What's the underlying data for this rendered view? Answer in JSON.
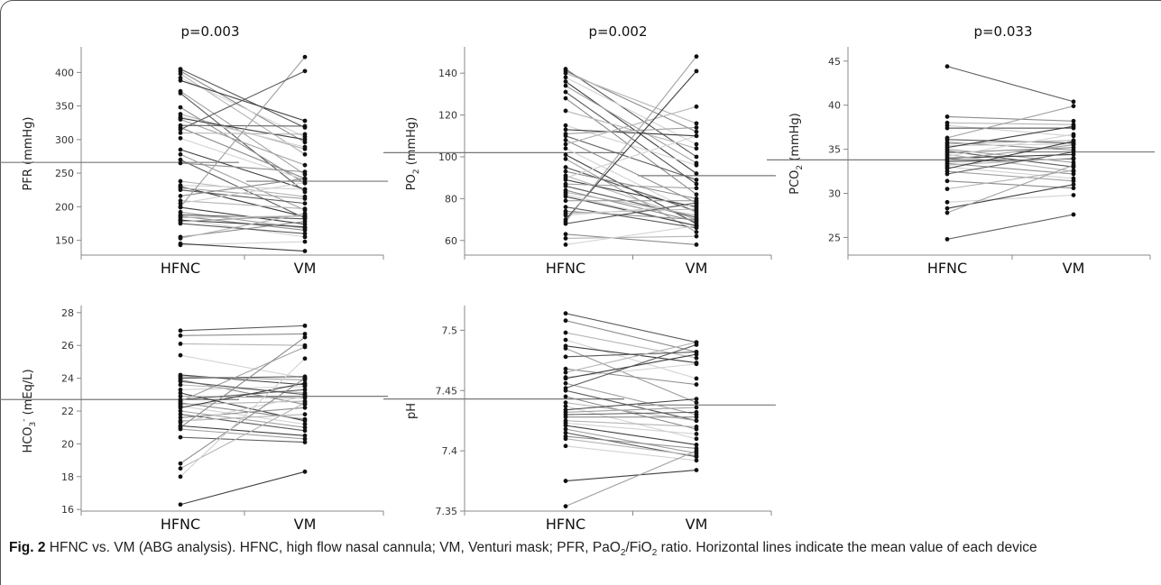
{
  "figure": {
    "caption_label": "Fig. 2",
    "caption_text": "HFNC vs. VM (ABG analysis). HFNC, high flow nasal cannula; VM, Venturi mask; PFR, PaO2/FiO2 ratio. Horizontal lines indicate the mean value of each device",
    "caption_parts": {
      "lead": "HFNC vs. VM (ABG analysis). HFNC, high flow nasal cannula; VM, Venturi mask; PFR, PaO",
      "sub1": "2",
      "mid": "/FiO",
      "sub2": "2",
      "tail": " ratio. Horizontal lines indicate the mean value of each device"
    }
  },
  "chart_data": [
    {
      "type": "scatter",
      "id": "pfr",
      "title": "p=0.003",
      "ylabel": "PFR (mmHg)",
      "ylabel_main": "PFR (mmHg)",
      "categories": [
        "HFNC",
        "VM"
      ],
      "ylim": [
        128,
        430
      ],
      "yticks": [
        150,
        200,
        250,
        300,
        350,
        400
      ],
      "means": [
        266,
        238
      ],
      "pairs": [
        [
          405,
          318
        ],
        [
          402,
          296
        ],
        [
          398,
          278
        ],
        [
          392,
          304
        ],
        [
          388,
          328
        ],
        [
          372,
          248
        ],
        [
          369,
          222
        ],
        [
          348,
          235
        ],
        [
          338,
          286
        ],
        [
          334,
          289
        ],
        [
          332,
          300
        ],
        [
          330,
          262
        ],
        [
          321,
          320
        ],
        [
          318,
          242
        ],
        [
          310,
          308
        ],
        [
          302,
          240
        ],
        [
          285,
          226
        ],
        [
          278,
          195
        ],
        [
          270,
          183
        ],
        [
          265,
          252
        ],
        [
          238,
          215
        ],
        [
          232,
          226
        ],
        [
          230,
          185
        ],
        [
          228,
          212
        ],
        [
          225,
          205
        ],
        [
          216,
          242
        ],
        [
          209,
          197
        ],
        [
          205,
          236
        ],
        [
          199,
          174
        ],
        [
          192,
          168
        ],
        [
          188,
          182
        ],
        [
          186,
          165
        ],
        [
          184,
          186
        ],
        [
          181,
          155
        ],
        [
          180,
          170
        ],
        [
          178,
          187
        ],
        [
          175,
          160
        ],
        [
          155,
          178
        ],
        [
          153,
          190
        ],
        [
          143,
          148
        ],
        [
          145,
          134
        ],
        [
          200,
          423
        ],
        [
          315,
          402
        ]
      ]
    },
    {
      "type": "scatter",
      "id": "po2",
      "title": "p=0.002",
      "ylabel_main": "PO",
      "ylabel_sub": "2",
      "ylabel_tail": " (mmHg)",
      "categories": [
        "HFNC",
        "VM"
      ],
      "ylim": [
        53,
        150
      ],
      "yticks": [
        60,
        80,
        100,
        120,
        140
      ],
      "means": [
        102,
        91
      ],
      "pairs": [
        [
          142,
          100
        ],
        [
          141,
          112
        ],
        [
          140,
          116
        ],
        [
          138,
          106
        ],
        [
          136,
          92
        ],
        [
          134,
          97
        ],
        [
          131,
          87
        ],
        [
          128,
          82
        ],
        [
          122,
          104
        ],
        [
          115,
          96
        ],
        [
          113,
          110
        ],
        [
          111,
          114
        ],
        [
          110,
          89
        ],
        [
          108,
          78
        ],
        [
          106,
          124
        ],
        [
          104,
          73
        ],
        [
          101,
          68
        ],
        [
          99,
          64
        ],
        [
          95,
          74
        ],
        [
          93,
          80
        ],
        [
          91,
          70
        ],
        [
          90,
          110
        ],
        [
          89,
          76
        ],
        [
          87,
          85
        ],
        [
          86,
          71
        ],
        [
          84,
          69
        ],
        [
          83,
          72
        ],
        [
          82,
          67
        ],
        [
          81,
          67
        ],
        [
          79,
          79
        ],
        [
          76,
          66
        ],
        [
          74,
          70
        ],
        [
          73,
          75
        ],
        [
          72,
          77
        ],
        [
          70,
          141
        ],
        [
          69,
          148
        ],
        [
          68,
          78
        ],
        [
          63,
          58
        ],
        [
          61,
          62
        ],
        [
          58,
          67
        ]
      ]
    },
    {
      "type": "scatter",
      "id": "pco2",
      "title": "p=0.033",
      "ylabel_main": "PCO",
      "ylabel_sub": "2",
      "ylabel_tail": " (mmHg)",
      "categories": [
        "HFNC",
        "VM"
      ],
      "ylim": [
        23,
        46
      ],
      "yticks": [
        25,
        30,
        35,
        40,
        45
      ],
      "means": [
        33.8,
        34.7
      ],
      "pairs": [
        [
          44.4,
          40.4
        ],
        [
          38.7,
          38.2
        ],
        [
          38.0,
          37.8
        ],
        [
          37.7,
          36.5
        ],
        [
          37.4,
          37.4
        ],
        [
          36.3,
          39.9
        ],
        [
          36.1,
          35.7
        ],
        [
          35.8,
          34.9
        ],
        [
          35.6,
          36.0
        ],
        [
          35.4,
          35.6
        ],
        [
          35.2,
          37.6
        ],
        [
          35.0,
          33.5
        ],
        [
          34.8,
          33.0
        ],
        [
          34.6,
          35.2
        ],
        [
          34.4,
          32.5
        ],
        [
          34.2,
          36.7
        ],
        [
          34.0,
          34.4
        ],
        [
          33.8,
          35.5
        ],
        [
          33.6,
          33.9
        ],
        [
          33.4,
          32.2
        ],
        [
          33.2,
          34.0
        ],
        [
          33.0,
          31.7
        ],
        [
          32.8,
          35.9
        ],
        [
          32.5,
          31.4
        ],
        [
          32.2,
          34.7
        ],
        [
          31.4,
          30.6
        ],
        [
          30.5,
          32.6
        ],
        [
          29.0,
          29.8
        ],
        [
          28.3,
          31.0
        ],
        [
          27.8,
          33.2
        ],
        [
          24.8,
          27.6
        ]
      ]
    },
    {
      "type": "scatter",
      "id": "hco3",
      "title": "",
      "ylabel_main": "HCO",
      "ylabel_sub": "3",
      "ylabel_sup": "-",
      "ylabel_tail": " (mEq/L)",
      "categories": [
        "HFNC",
        "VM"
      ],
      "ylim": [
        15.9,
        28.1
      ],
      "yticks": [
        16,
        18,
        20,
        22,
        24,
        26,
        28
      ],
      "means": [
        22.7,
        22.9
      ],
      "pairs": [
        [
          26.9,
          27.2
        ],
        [
          26.6,
          26.7
        ],
        [
          26.1,
          26.0
        ],
        [
          25.4,
          24.0
        ],
        [
          24.2,
          23.6
        ],
        [
          24.1,
          23.9
        ],
        [
          24.0,
          24.1
        ],
        [
          23.9,
          22.4
        ],
        [
          23.6,
          23.1
        ],
        [
          23.3,
          23.5
        ],
        [
          23.1,
          21.4
        ],
        [
          22.9,
          22.8
        ],
        [
          22.7,
          23.3
        ],
        [
          22.5,
          21.5
        ],
        [
          22.4,
          22.6
        ],
        [
          22.3,
          21.2
        ],
        [
          22.2,
          23.7
        ],
        [
          22.0,
          21.0
        ],
        [
          21.8,
          20.8
        ],
        [
          21.6,
          22.2
        ],
        [
          21.4,
          21.8
        ],
        [
          21.3,
          22.9
        ],
        [
          21.1,
          20.5
        ],
        [
          20.9,
          20.3
        ],
        [
          20.4,
          20.1
        ],
        [
          18.8,
          24.0
        ],
        [
          18.5,
          22.5
        ],
        [
          18.0,
          25.2
        ],
        [
          16.3,
          18.3
        ],
        [
          22.6,
          25.9
        ],
        [
          23.8,
          23.0
        ],
        [
          21.0,
          26.5
        ]
      ]
    },
    {
      "type": "scatter",
      "id": "ph",
      "title": "",
      "ylabel_main": "pH",
      "categories": [
        "HFNC",
        "VM"
      ],
      "ylim": [
        7.35,
        7.516
      ],
      "yticks": [
        7.35,
        7.4,
        7.45,
        7.5
      ],
      "means": [
        7.443,
        7.438
      ],
      "pairs": [
        [
          7.514,
          7.49
        ],
        [
          7.508,
          7.482
        ],
        [
          7.498,
          7.477
        ],
        [
          7.492,
          7.46
        ],
        [
          7.487,
          7.473
        ],
        [
          7.485,
          7.44
        ],
        [
          7.478,
          7.482
        ],
        [
          7.468,
          7.455
        ],
        [
          7.465,
          7.49
        ],
        [
          7.461,
          7.472
        ],
        [
          7.46,
          7.48
        ],
        [
          7.456,
          7.43
        ],
        [
          7.45,
          7.425
        ],
        [
          7.445,
          7.418
        ],
        [
          7.44,
          7.425
        ],
        [
          7.437,
          7.41
        ],
        [
          7.434,
          7.443
        ],
        [
          7.432,
          7.436
        ],
        [
          7.43,
          7.432
        ],
        [
          7.428,
          7.428
        ],
        [
          7.425,
          7.42
        ],
        [
          7.423,
          7.414
        ],
        [
          7.421,
          7.405
        ],
        [
          7.418,
          7.398
        ],
        [
          7.415,
          7.395
        ],
        [
          7.412,
          7.402
        ],
        [
          7.41,
          7.396
        ],
        [
          7.404,
          7.392
        ],
        [
          7.375,
          7.384
        ],
        [
          7.354,
          7.4
        ],
        [
          7.452,
          7.488
        ]
      ]
    }
  ],
  "style": {
    "line_colors": [
      "#5a5a5a",
      "#8c8c8c",
      "#b4b4b4",
      "#d2d2d2",
      "#3e3e3e",
      "#a0a0a0"
    ],
    "dot_color": "#111111",
    "mean_line_color": "#777777",
    "axis_color": "#888888"
  }
}
